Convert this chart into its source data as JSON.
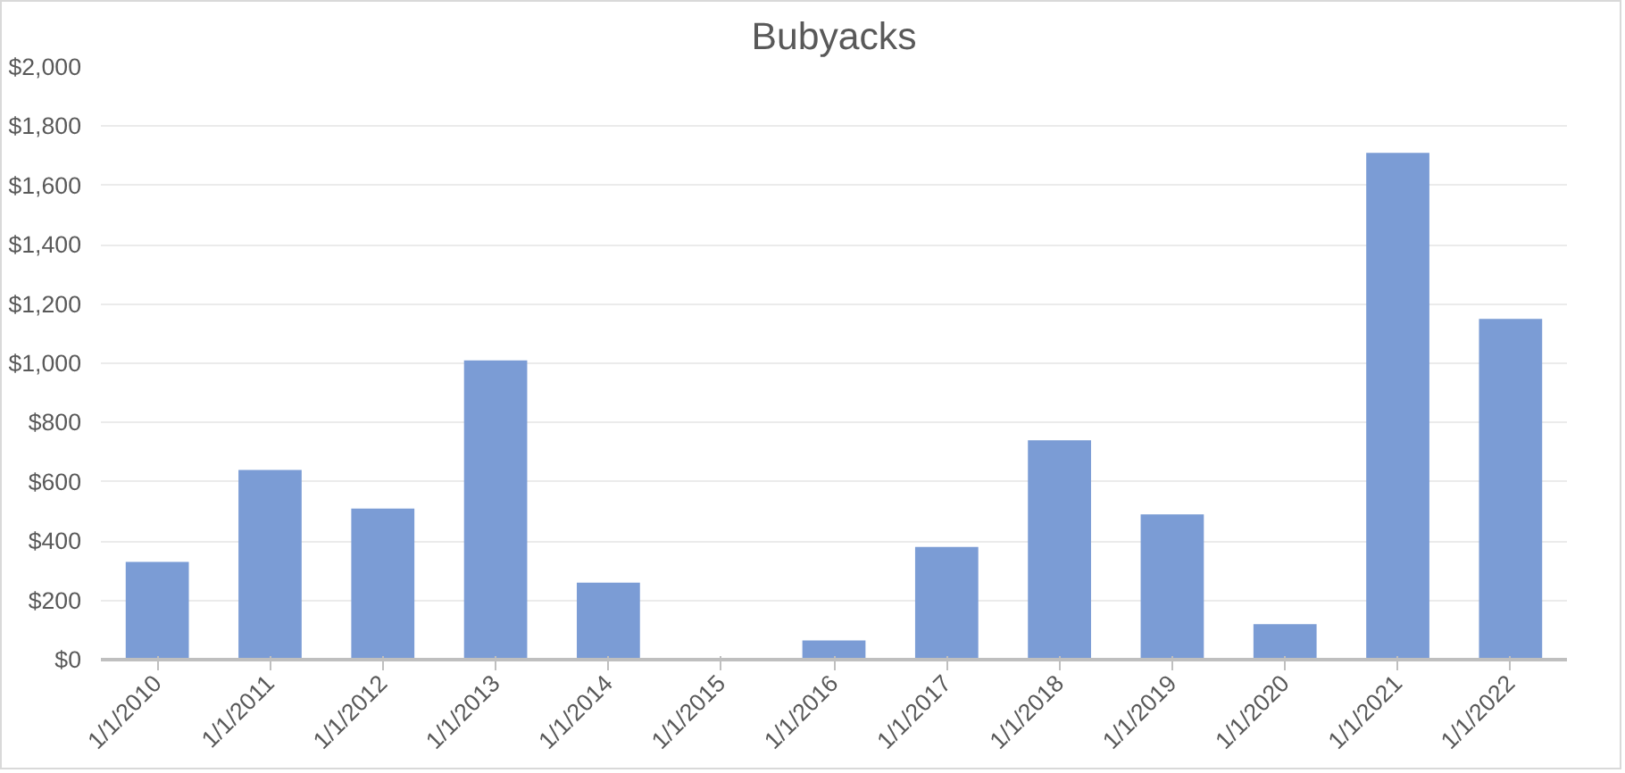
{
  "chart_data": {
    "type": "bar",
    "title": "Bubyacks",
    "categories": [
      "1/1/2010",
      "1/1/2011",
      "1/1/2012",
      "1/1/2013",
      "1/1/2014",
      "1/1/2015",
      "1/1/2016",
      "1/1/2017",
      "1/1/2018",
      "1/1/2019",
      "1/1/2020",
      "1/1/2021",
      "1/1/2022"
    ],
    "values": [
      330,
      640,
      510,
      1010,
      260,
      0,
      65,
      380,
      740,
      490,
      120,
      1710,
      1150
    ],
    "color": "#7b9cd5",
    "ylim": [
      0,
      2000
    ],
    "yticks": [
      {
        "value": 0,
        "label": "$0"
      },
      {
        "value": 200,
        "label": "$200"
      },
      {
        "value": 400,
        "label": "$400"
      },
      {
        "value": 600,
        "label": "$600"
      },
      {
        "value": 800,
        "label": "$800"
      },
      {
        "value": 1000,
        "label": "$1,000"
      },
      {
        "value": 1200,
        "label": "$1,200"
      },
      {
        "value": 1400,
        "label": "$1,400"
      },
      {
        "value": 1600,
        "label": "$1,600"
      },
      {
        "value": 1800,
        "label": "$1,800"
      },
      {
        "value": 2000,
        "label": "$2,000"
      }
    ],
    "grid": "y"
  }
}
